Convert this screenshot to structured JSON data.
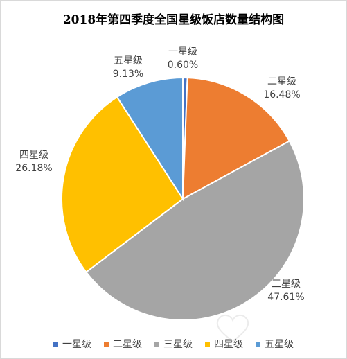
{
  "chart_data": {
    "type": "pie",
    "title": "2018年第四季度全国星级饭店数量结构图",
    "slices": [
      {
        "name": "一星级",
        "label": "0.60%",
        "value": 0.6,
        "color": "#4472C4"
      },
      {
        "name": "二星级",
        "label": "16.48%",
        "value": 16.48,
        "color": "#ED7D31"
      },
      {
        "name": "三星级",
        "label": "47.61%",
        "value": 47.61,
        "color": "#A5A5A5"
      },
      {
        "name": "四星级",
        "label": "26.18%",
        "value": 26.18,
        "color": "#FFC000"
      },
      {
        "name": "五星级",
        "label": "9.13%",
        "value": 9.13,
        "color": "#5B9BD5"
      }
    ],
    "legend": [
      "一星级",
      "二星级",
      "三星级",
      "四星级",
      "五星级"
    ],
    "legend_position": "bottom"
  }
}
